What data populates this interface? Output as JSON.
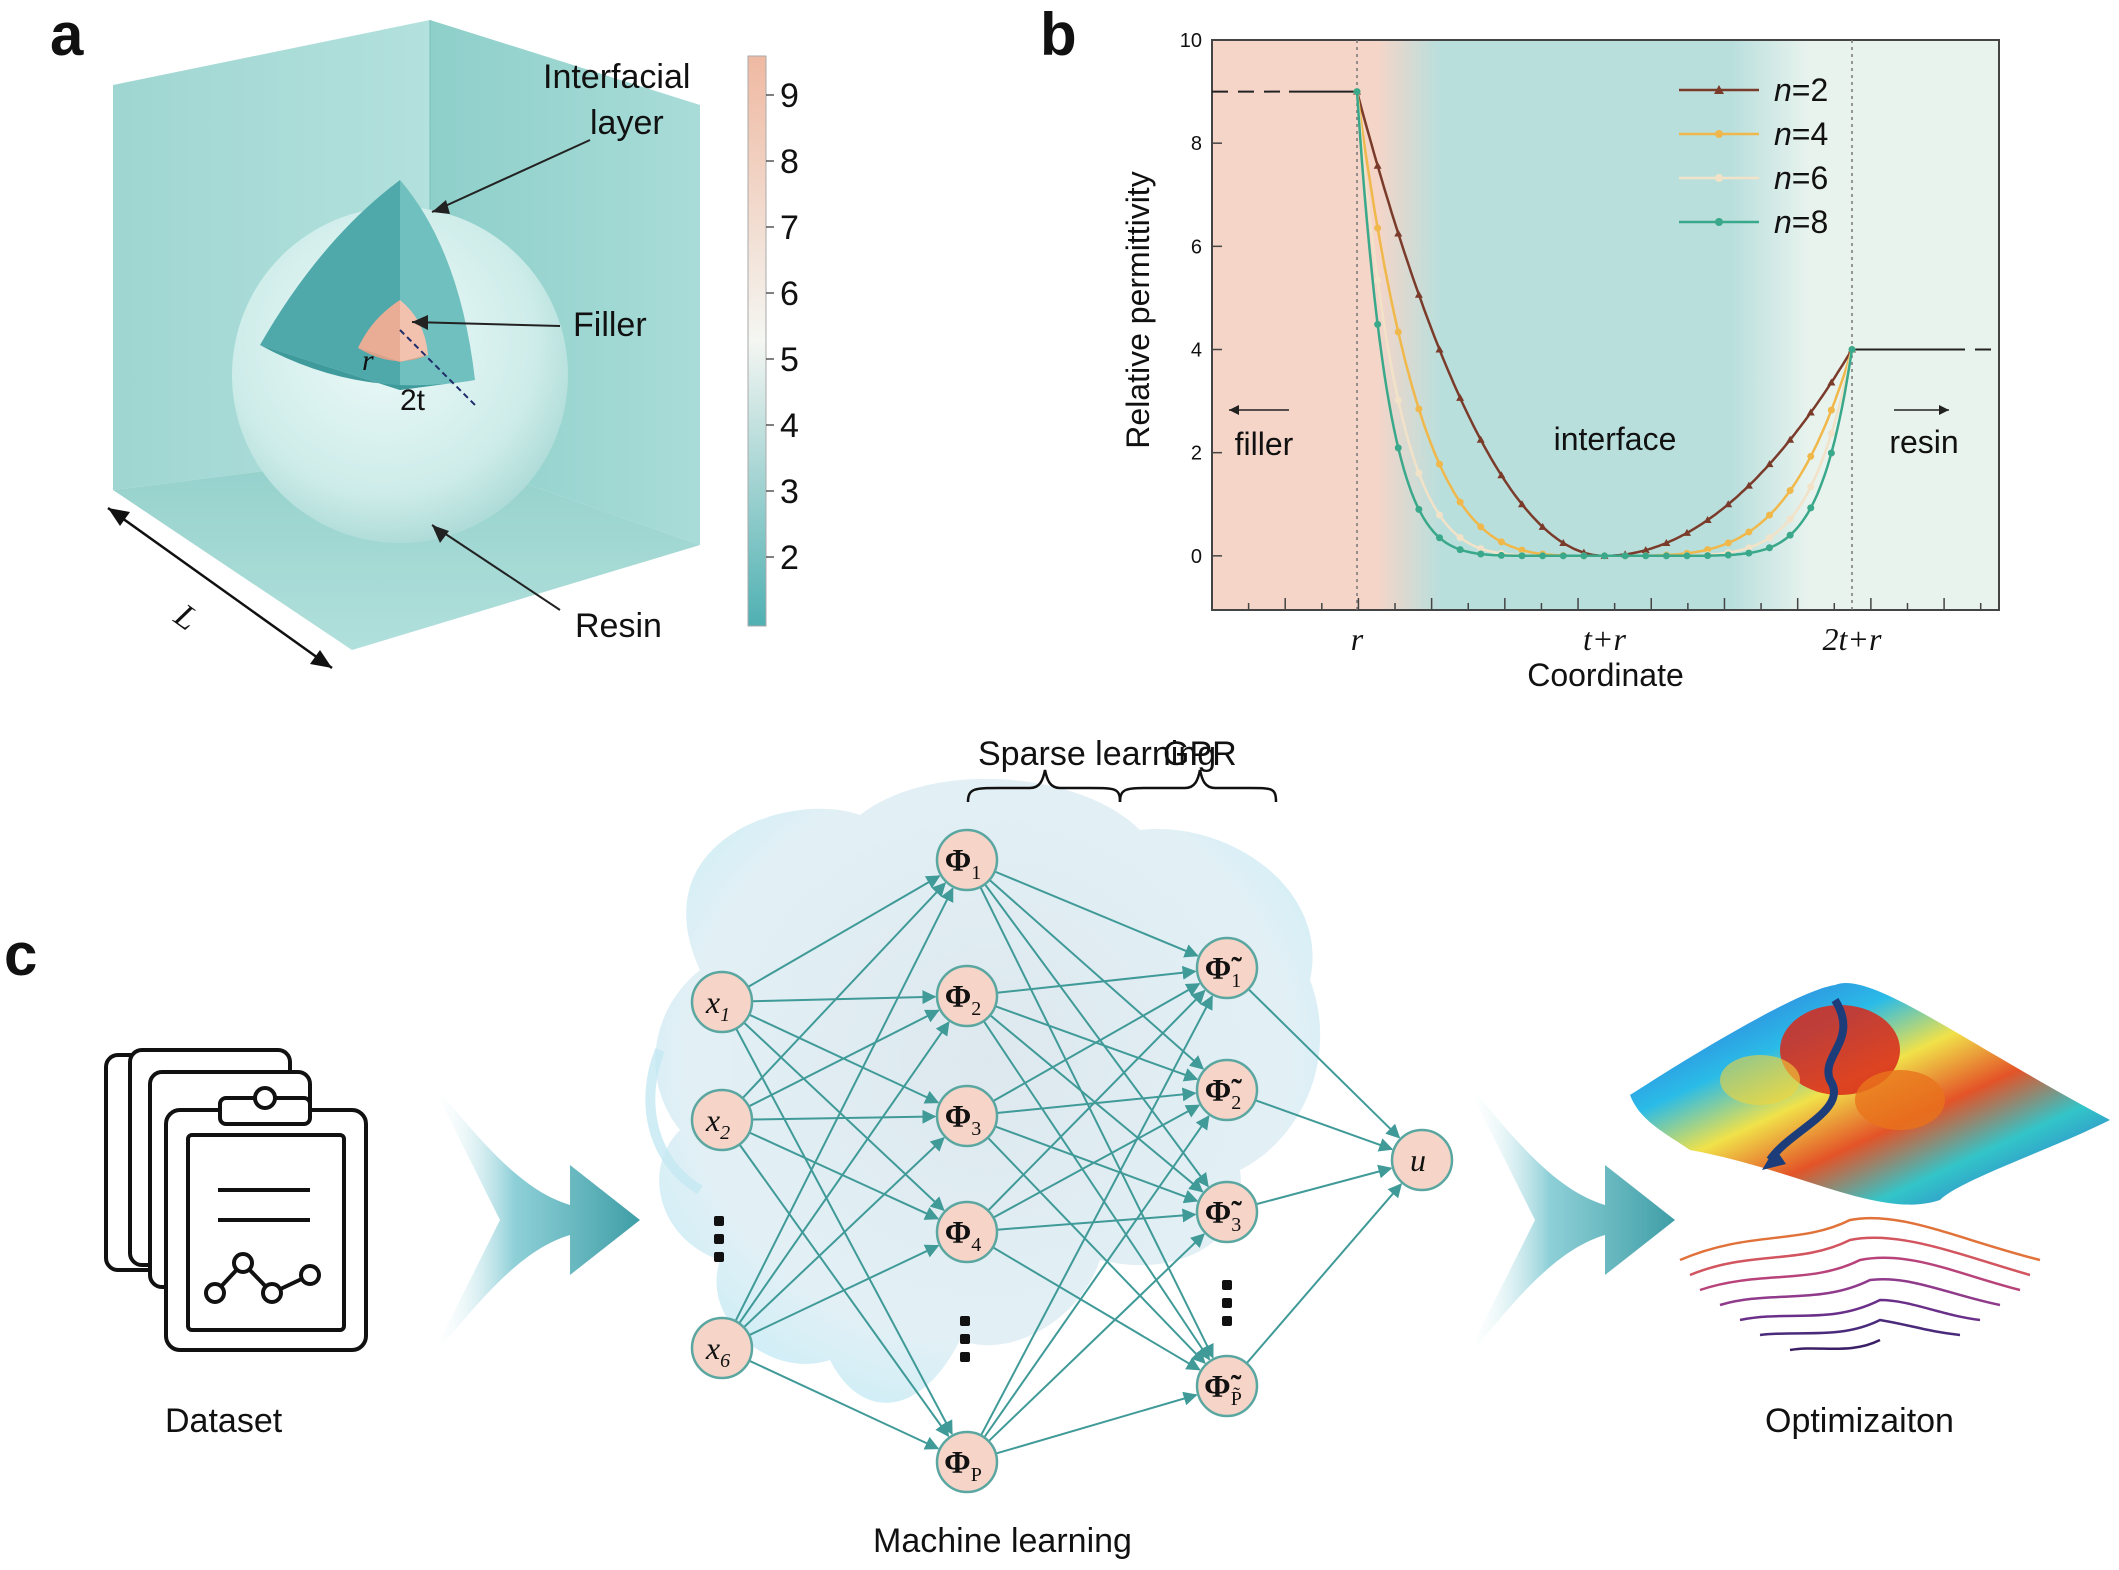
{
  "panels": {
    "a": "a",
    "b": "b",
    "c": "c"
  },
  "panel_a": {
    "labels": {
      "interfacial_line1": "Interfacial",
      "interfacial_line2": "layer",
      "filler": "Filler",
      "resin": "Resin",
      "L": "L",
      "r": "r",
      "twot": "2t"
    },
    "colorbar_ticks": [
      "9",
      "8",
      "7",
      "6",
      "5",
      "4",
      "3",
      "2"
    ],
    "colors": {
      "resin": "#a8dcd9",
      "filler": "#f0bfaa",
      "interface": "#4fb0b2"
    }
  },
  "chart_data": {
    "type": "line",
    "xlabel": "Coordinate",
    "ylabel": "Relative permittivity",
    "ylim": [
      0,
      10
    ],
    "yticks": [
      "0",
      "2",
      "4",
      "6",
      "8",
      "10"
    ],
    "x_tick_labels": [
      "r",
      "t+r",
      "2t+r"
    ],
    "x_tick_positions": [
      0,
      0.5,
      1
    ],
    "region_labels": {
      "filler": "filler",
      "interface": "interface",
      "resin": "resin"
    },
    "filler_level": 9,
    "resin_level": 4,
    "legend_position": "top-right",
    "series": [
      {
        "name": "n=2",
        "n_label": "n",
        "eq_label": "=2",
        "n": 2,
        "color": "#7a3b2a"
      },
      {
        "name": "n=4",
        "n_label": "n",
        "eq_label": "=4",
        "n": 4,
        "color": "#f0b84a"
      },
      {
        "name": "n=6",
        "n_label": "n",
        "eq_label": "=6",
        "n": 6,
        "color": "#f2e2c8"
      },
      {
        "name": "n=8",
        "n_label": "n",
        "eq_label": "=8",
        "n": 8,
        "color": "#3aa88a"
      }
    ]
  },
  "panel_c": {
    "dataset_label": "Dataset",
    "ml_label": "Machine learning",
    "opt_label": "Optimizaiton",
    "sparse_label": "Sparse learning",
    "gpr_label": "GPR",
    "inputs": [
      {
        "base": "x",
        "sub": "1"
      },
      {
        "base": "x",
        "sub": "2"
      },
      {
        "base": "x",
        "sub": "6"
      }
    ],
    "hidden1": [
      {
        "base": "Φ",
        "sub": "1"
      },
      {
        "base": "Φ",
        "sub": "2"
      },
      {
        "base": "Φ",
        "sub": "3"
      },
      {
        "base": "Φ",
        "sub": "4"
      },
      {
        "base": "Φ",
        "sub": "P"
      }
    ],
    "hidden2": [
      {
        "base": "Φ̃",
        "sub": "1"
      },
      {
        "base": "Φ̃",
        "sub": "2"
      },
      {
        "base": "Φ̃",
        "sub": "3"
      },
      {
        "base": "Φ̃",
        "sub": "P̃"
      }
    ],
    "output": {
      "base": "u"
    },
    "colors": {
      "node_fill": "#f6d5c8",
      "node_stroke": "#5aa6a0",
      "edge": "#3f9a98",
      "arrow": "#3f9ea6"
    }
  }
}
